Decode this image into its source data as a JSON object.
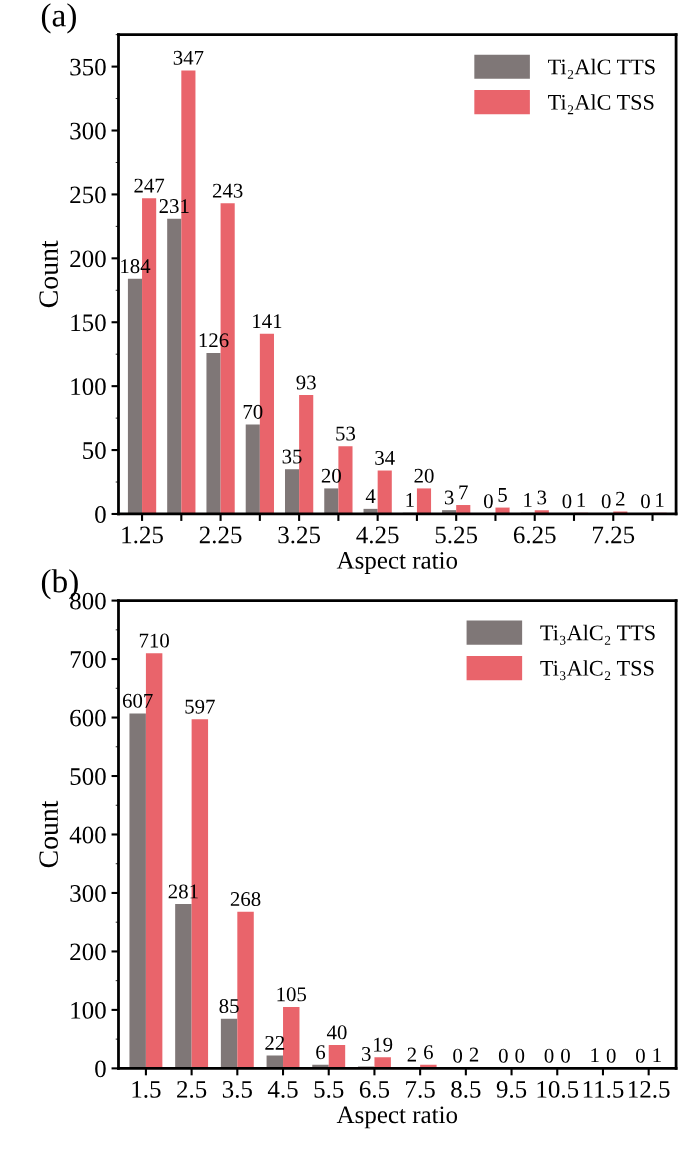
{
  "chart_data": [
    {
      "type": "bar",
      "title": "(a)",
      "xlabel": "Aspect ratio",
      "ylabel": "Count",
      "categories": [
        "1.25",
        null,
        "2.25",
        null,
        "3.25",
        null,
        "4.25",
        null,
        "5.25",
        null,
        "6.25",
        null,
        "7.25",
        null
      ],
      "series": [
        {
          "name": "Ti₂AlC TTS",
          "color": "#7f7777",
          "values": [
            184,
            231,
            126,
            70,
            35,
            20,
            4,
            1,
            3,
            0,
            1,
            0,
            0,
            0
          ]
        },
        {
          "name": "Ti₂AlC TSS",
          "color": "#e9646b",
          "values": [
            247,
            347,
            243,
            141,
            93,
            53,
            34,
            20,
            7,
            5,
            3,
            1,
            2,
            1
          ]
        }
      ],
      "ylim": [
        0,
        375
      ],
      "yticks": [
        0,
        50,
        100,
        150,
        200,
        250,
        300,
        350
      ],
      "data_labels": true,
      "legend": "top right"
    },
    {
      "type": "bar",
      "title": "(b)",
      "xlabel": "Aspect ratio",
      "ylabel": "Count",
      "categories": [
        "1.5",
        "2.5",
        "3.5",
        "4.5",
        "5.5",
        "6.5",
        "7.5",
        "8.5",
        "9.5",
        "10.5",
        "11.5",
        "12.5"
      ],
      "series": [
        {
          "name": "Ti₃AlC₂ TTS",
          "color": "#7f7777",
          "values": [
            607,
            281,
            85,
            22,
            6,
            3,
            2,
            0,
            0,
            0,
            1,
            0
          ]
        },
        {
          "name": "Ti₃AlC₂ TSS",
          "color": "#e9646b",
          "values": [
            710,
            597,
            268,
            105,
            40,
            19,
            6,
            2,
            0,
            0,
            0,
            1
          ]
        }
      ],
      "ylim": [
        0,
        800
      ],
      "yticks": [
        0,
        100,
        200,
        300,
        400,
        500,
        600,
        700,
        800
      ],
      "data_labels": true,
      "legend": "top right"
    }
  ]
}
